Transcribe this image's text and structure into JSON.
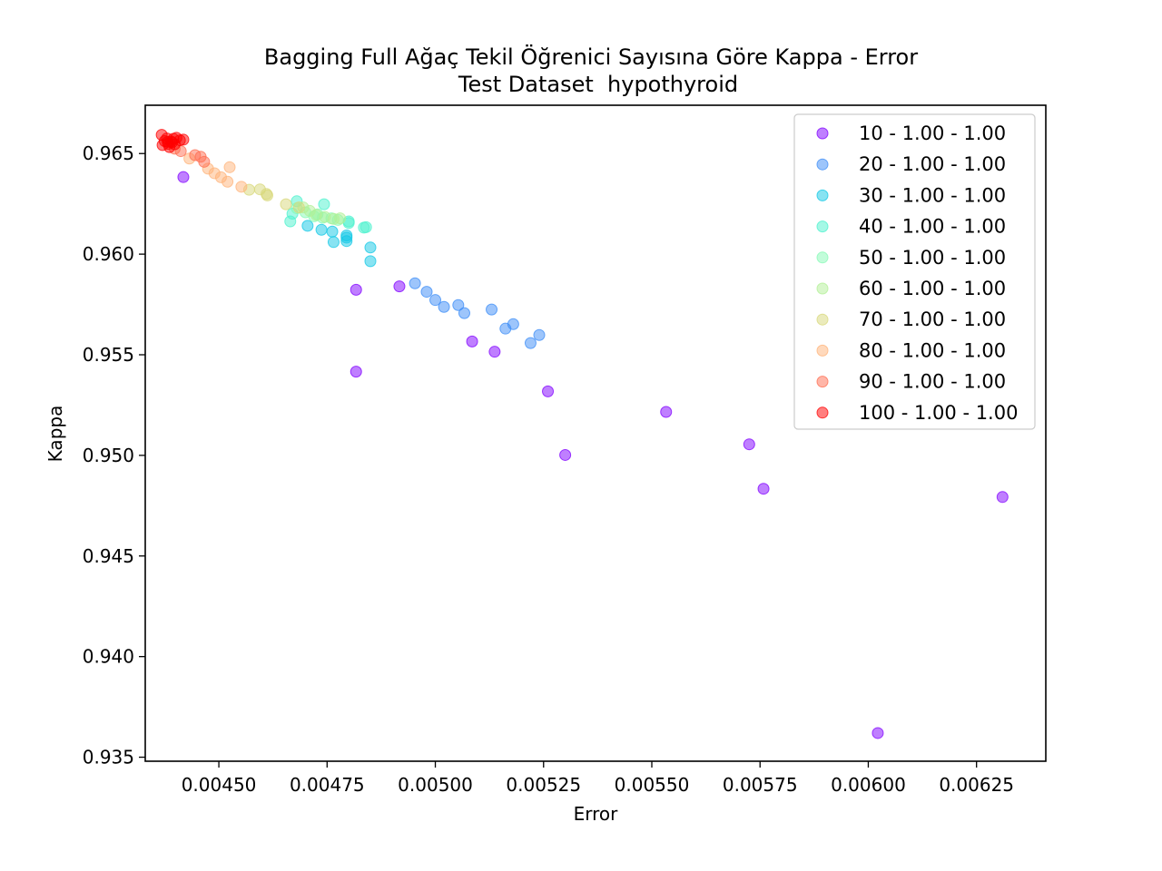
{
  "chart_data": {
    "type": "scatter",
    "title": "Bagging Full Ağaç Tekil Öğrenici Sayısına Göre Kappa - Error",
    "subtitle": "Test Dataset  hypothyroid",
    "xlabel": "Error",
    "ylabel": "Kappa",
    "xlim": [
      0.00433,
      0.00641
    ],
    "ylim": [
      0.9348,
      0.9674
    ],
    "xticks": [
      "0.00450",
      "0.00475",
      "0.00500",
      "0.00525",
      "0.00550",
      "0.00575",
      "0.00600",
      "0.00625"
    ],
    "yticks": [
      "0.935",
      "0.940",
      "0.945",
      "0.950",
      "0.955",
      "0.960",
      "0.965"
    ],
    "grid": false,
    "legend_position": "top-right",
    "series": [
      {
        "name": "10 - 1.00 - 1.00",
        "color": "#8000ff",
        "points": [
          [
            0.004418,
            0.96383
          ],
          [
            0.004817,
            0.95823
          ],
          [
            0.004917,
            0.9584
          ],
          [
            0.004817,
            0.95416
          ],
          [
            0.005085,
            0.95566
          ],
          [
            0.005137,
            0.95515
          ],
          [
            0.00526,
            0.95318
          ],
          [
            0.0053,
            0.95002
          ],
          [
            0.005533,
            0.95216
          ],
          [
            0.005725,
            0.95055
          ],
          [
            0.005758,
            0.94834
          ],
          [
            0.00631,
            0.94793
          ],
          [
            0.006022,
            0.9362
          ]
        ]
      },
      {
        "name": "20 - 1.00 - 1.00",
        "color": "#3b8cf7",
        "points": [
          [
            0.004953,
            0.95855
          ],
          [
            0.00498,
            0.95813
          ],
          [
            0.005,
            0.95772
          ],
          [
            0.00502,
            0.95738
          ],
          [
            0.005053,
            0.95747
          ],
          [
            0.005067,
            0.95707
          ],
          [
            0.00513,
            0.95725
          ],
          [
            0.005162,
            0.9563
          ],
          [
            0.00518,
            0.95652
          ],
          [
            0.00522,
            0.95558
          ],
          [
            0.00524,
            0.95598
          ]
        ]
      },
      {
        "name": "30 - 1.00 - 1.00",
        "color": "#12c8e6",
        "points": [
          [
            0.004705,
            0.96141
          ],
          [
            0.004737,
            0.96121
          ],
          [
            0.004762,
            0.96112
          ],
          [
            0.004765,
            0.9606
          ],
          [
            0.004795,
            0.96065
          ],
          [
            0.004795,
            0.96082
          ],
          [
            0.004795,
            0.96093
          ],
          [
            0.00485,
            0.96033
          ],
          [
            0.00485,
            0.95965
          ]
        ]
      },
      {
        "name": "40 - 1.00 - 1.00",
        "color": "#4cf2ce",
        "points": [
          [
            0.004665,
            0.96163
          ],
          [
            0.00467,
            0.96201
          ],
          [
            0.00468,
            0.96263
          ],
          [
            0.004743,
            0.96248
          ],
          [
            0.0048,
            0.96155
          ],
          [
            0.0048,
            0.96163
          ],
          [
            0.004835,
            0.96132
          ],
          [
            0.00484,
            0.96134
          ]
        ]
      },
      {
        "name": "50 - 1.00 - 1.00",
        "color": "#85f9b6",
        "points": [
          [
            0.00468,
            0.96228
          ],
          [
            0.0047,
            0.96208
          ],
          [
            0.00472,
            0.96188
          ],
          [
            0.00474,
            0.96181
          ],
          [
            0.00476,
            0.96178
          ],
          [
            0.004775,
            0.9617
          ],
          [
            0.004728,
            0.96198
          ]
        ]
      },
      {
        "name": "60 - 1.00 - 1.00",
        "color": "#b2f096",
        "points": [
          [
            0.004695,
            0.96232
          ],
          [
            0.00471,
            0.96215
          ],
          [
            0.004725,
            0.96195
          ],
          [
            0.004745,
            0.96185
          ],
          [
            0.004765,
            0.96175
          ],
          [
            0.00478,
            0.96178
          ]
        ]
      },
      {
        "name": "70 - 1.00 - 1.00",
        "color": "#d8d87a",
        "points": [
          [
            0.00457,
            0.9632
          ],
          [
            0.004595,
            0.96322
          ],
          [
            0.00461,
            0.96299
          ],
          [
            0.004612,
            0.96292
          ],
          [
            0.004655,
            0.96248
          ],
          [
            0.004685,
            0.96232
          ]
        ]
      },
      {
        "name": "80 - 1.00 - 1.00",
        "color": "#ffb37a",
        "points": [
          [
            0.004432,
            0.96475
          ],
          [
            0.004475,
            0.96425
          ],
          [
            0.00449,
            0.96402
          ],
          [
            0.004505,
            0.96382
          ],
          [
            0.00452,
            0.9636
          ],
          [
            0.004525,
            0.96432
          ],
          [
            0.004552,
            0.96335
          ]
        ]
      },
      {
        "name": "90 - 1.00 - 1.00",
        "color": "#ff6e52",
        "points": [
          [
            0.004398,
            0.96524
          ],
          [
            0.004412,
            0.96512
          ],
          [
            0.004445,
            0.96492
          ],
          [
            0.004458,
            0.96484
          ],
          [
            0.004466,
            0.96459
          ]
        ]
      },
      {
        "name": "100 - 1.00 - 1.00",
        "color": "#ff0000",
        "points": [
          [
            0.004368,
            0.96593
          ],
          [
            0.00437,
            0.96542
          ],
          [
            0.004375,
            0.96562
          ],
          [
            0.00438,
            0.96575
          ],
          [
            0.004383,
            0.96548
          ],
          [
            0.004386,
            0.96532
          ],
          [
            0.00439,
            0.9656
          ],
          [
            0.004395,
            0.96573
          ],
          [
            0.004398,
            0.96546
          ],
          [
            0.004402,
            0.96578
          ],
          [
            0.00441,
            0.96566
          ],
          [
            0.004418,
            0.96569
          ],
          [
            0.004392,
            0.96555
          ],
          [
            0.004382,
            0.96558
          ]
        ]
      }
    ]
  }
}
